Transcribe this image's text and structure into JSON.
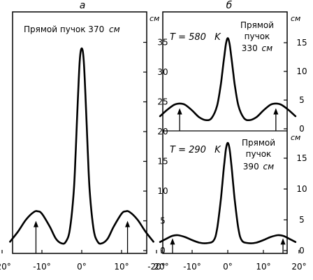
{
  "chart_data": [
    {
      "type": "line",
      "panel_label": "а",
      "annotation": "Прямой пучок 370",
      "annotation_unit": "см",
      "ylabel": "см",
      "xlim": [
        -20,
        20
      ],
      "ylim": [
        0,
        37
      ],
      "x_ticks": [
        -20,
        -10,
        0,
        10,
        20
      ],
      "x_tick_labels": [
        "-20°",
        "-10°",
        "0°",
        "10°",
        "20°"
      ],
      "y_ticks": [
        0,
        5,
        10,
        15,
        20,
        25,
        30,
        35
      ],
      "y_tick_labels": [
        "0",
        "5",
        "10",
        "15",
        "20",
        "25",
        "30",
        "35"
      ],
      "series": [
        {
          "x": [
            -18,
            -16,
            -14,
            -12,
            -11,
            -10,
            -8,
            -6.5,
            -5,
            -4,
            -3,
            -2,
            -1.5,
            -1,
            -0.5,
            0,
            0.5,
            1,
            1.5,
            2,
            3,
            4,
            5,
            6.5,
            8,
            10,
            11,
            12,
            14,
            16,
            18
          ],
          "y": [
            1.5,
            3.2,
            5.2,
            6.5,
            6.6,
            6.2,
            4.0,
            2.0,
            1.2,
            1.5,
            3.5,
            10.0,
            17.0,
            25.0,
            32.0,
            34.0,
            32.0,
            25.0,
            17.0,
            10.0,
            3.5,
            1.5,
            1.2,
            2.0,
            4.0,
            6.2,
            6.6,
            6.5,
            5.2,
            3.2,
            1.5
          ]
        }
      ],
      "arrows_x": [
        -11.5,
        11.5
      ],
      "arrows_top_y": 5.0
    },
    {
      "type": "line",
      "panel_label": "б",
      "annotation_lines": [
        "Прямой",
        "пучок",
        "330"
      ],
      "annotation_unit": "см",
      "temperature_prefix": "T = 580",
      "temperature_unit": "K",
      "ylabel": "см",
      "xlim": [
        -20,
        20
      ],
      "ylim": [
        0,
        17
      ],
      "y_ticks": [
        0,
        5,
        10,
        15
      ],
      "y_tick_labels": [
        "0",
        "5",
        "10",
        "15"
      ],
      "series": [
        {
          "x": [
            -19,
            -17,
            -15,
            -13.5,
            -12,
            -10,
            -8,
            -6,
            -4.5,
            -3,
            -2,
            -1.5,
            -1,
            -0.5,
            0,
            0.5,
            1,
            1.5,
            2,
            3,
            4.5,
            6,
            8,
            10,
            12,
            13.5,
            15,
            17,
            19
          ],
          "y": [
            2.2,
            3.3,
            4.2,
            4.4,
            4.2,
            3.2,
            2.0,
            1.5,
            1.9,
            4.0,
            7.5,
            10.0,
            12.5,
            14.8,
            15.8,
            14.8,
            12.5,
            10.0,
            7.5,
            4.0,
            1.9,
            1.5,
            2.0,
            3.2,
            4.2,
            4.4,
            4.2,
            3.3,
            2.2
          ]
        }
      ],
      "arrows_x": [
        -13.5,
        13.5
      ],
      "arrows_top_y": 3.6
    },
    {
      "type": "line",
      "panel_label": "",
      "annotation_lines": [
        "Прямой",
        "пучок",
        "390"
      ],
      "annotation_unit": "см",
      "temperature_prefix": "T = 290",
      "temperature_unit": "K",
      "ylabel": "см",
      "xlim": [
        -20,
        20
      ],
      "ylim": [
        0,
        19
      ],
      "x_ticks": [
        -20,
        -10,
        0,
        10,
        20
      ],
      "x_tick_labels": [
        "-20°",
        "-10°",
        "0°",
        "10°",
        "20°"
      ],
      "y_ticks": [
        0,
        5,
        10,
        15
      ],
      "y_tick_labels": [
        "0",
        "5",
        "10",
        "15"
      ],
      "series": [
        {
          "x": [
            -19,
            -17,
            -15.5,
            -14,
            -12,
            -10,
            -8,
            -6,
            -4,
            -3,
            -2,
            -1.5,
            -1,
            -0.5,
            0,
            0.5,
            1,
            1.5,
            2,
            3,
            4,
            6,
            8,
            10,
            12,
            14,
            15.5,
            17,
            19
          ],
          "y": [
            1.4,
            2.0,
            2.4,
            2.5,
            2.2,
            1.7,
            1.3,
            1.2,
            1.6,
            3.5,
            8.0,
            11.0,
            14.0,
            16.5,
            17.5,
            16.5,
            14.0,
            11.0,
            8.0,
            3.5,
            1.6,
            1.2,
            1.3,
            1.7,
            2.2,
            2.5,
            2.4,
            2.0,
            1.4
          ]
        }
      ],
      "arrows_x": [
        -15.5,
        15.5
      ],
      "arrows_top_y": 2.0
    }
  ]
}
